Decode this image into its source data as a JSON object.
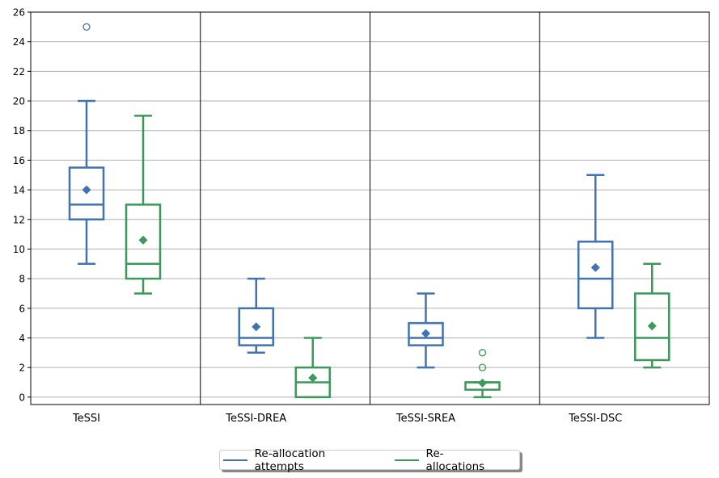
{
  "chart_data": {
    "type": "boxplot",
    "title": "",
    "xlabel": "",
    "ylabel": "",
    "ylim": [
      -0.5,
      26
    ],
    "yticks": [
      0,
      2,
      4,
      6,
      8,
      10,
      12,
      14,
      16,
      18,
      20,
      22,
      24,
      26
    ],
    "grid": "horizontal",
    "legend_position": "bottom-center",
    "categories": [
      "TeSSI",
      "TeSSI-DREA",
      "TeSSI-SREA",
      "TeSSI-DSC"
    ],
    "series": [
      {
        "name": "Re-allocation attempts",
        "color": "#4272b0",
        "boxes": [
          {
            "whisker_low": 9,
            "q1": 12,
            "median": 13,
            "q3": 15.5,
            "whisker_high": 20,
            "mean": 14,
            "outliers": [
              25
            ]
          },
          {
            "whisker_low": 3,
            "q1": 3.5,
            "median": 4,
            "q3": 6,
            "whisker_high": 8,
            "mean": 4.75,
            "outliers": []
          },
          {
            "whisker_low": 2,
            "q1": 3.5,
            "median": 4,
            "q3": 5,
            "whisker_high": 7,
            "mean": 4.3,
            "outliers": []
          },
          {
            "whisker_low": 4,
            "q1": 6,
            "median": 8,
            "q3": 10.5,
            "whisker_high": 15,
            "mean": 8.75,
            "outliers": []
          }
        ]
      },
      {
        "name": "Re-allocations",
        "color": "#3b9a5a",
        "boxes": [
          {
            "whisker_low": 7,
            "q1": 8,
            "median": 9,
            "q3": 13,
            "whisker_high": 19,
            "mean": 10.6,
            "outliers": []
          },
          {
            "whisker_low": 0,
            "q1": 0,
            "median": 1,
            "q3": 2,
            "whisker_high": 4,
            "mean": 1.3,
            "outliers": []
          },
          {
            "whisker_low": 0,
            "q1": 0.5,
            "median": 1,
            "q3": 1,
            "whisker_high": 1,
            "mean": 0.95,
            "outliers": [
              2,
              3
            ]
          },
          {
            "whisker_low": 2,
            "q1": 2.5,
            "median": 4,
            "q3": 7,
            "whisker_high": 9,
            "mean": 4.8,
            "outliers": []
          }
        ]
      }
    ]
  }
}
